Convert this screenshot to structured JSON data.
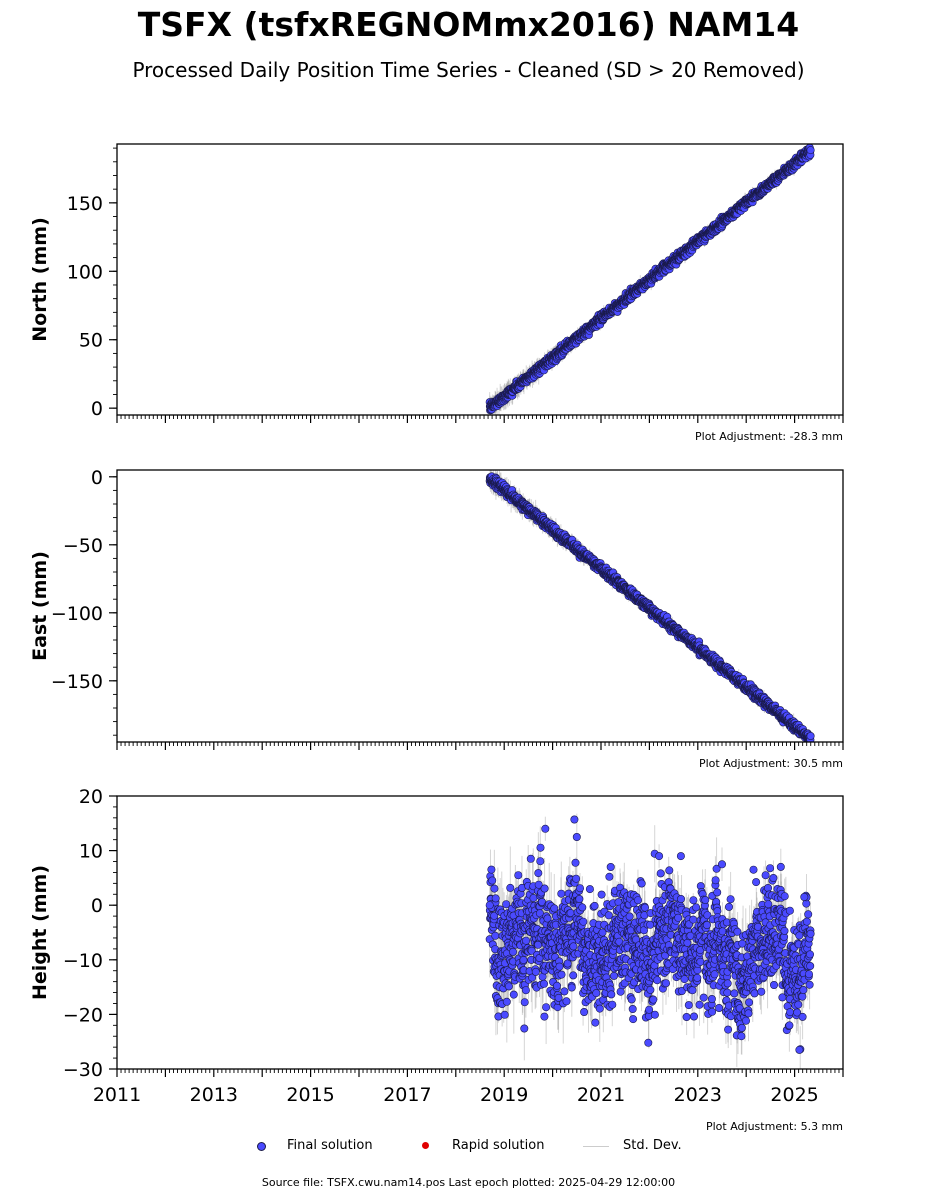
{
  "header": {
    "title": "TSFX (tsfxREGNOMmx2016) NAM14",
    "subtitle": "Processed Daily Position Time Series - Cleaned (SD > 20 Removed)"
  },
  "footer": {
    "source": "Source file: TSFX.cwu.nam14.pos  Last epoch plotted: 2025-04-29 12:00:00"
  },
  "legend": {
    "final": "Final solution",
    "rapid": "Rapid solution",
    "std": "Std. Dev."
  },
  "colors": {
    "final": "#4a4aff",
    "final_edge": "#1a1a4a",
    "rapid": "#e00000",
    "std": "#888888"
  },
  "chart_data": [
    {
      "type": "scatter",
      "ylabel": "North (mm)",
      "adjustment": "Plot Adjustment: -28.3 mm",
      "xlim": [
        2011.0,
        2026.0
      ],
      "ylim": [
        -5,
        193
      ],
      "yticks": [
        0,
        50,
        100,
        150
      ],
      "ytick_labels": [
        "0",
        "50",
        "100",
        "150"
      ],
      "x_range": [
        2018.7,
        2025.33
      ],
      "y_start": 0,
      "y_end": 188,
      "noise": 1.6,
      "std_early": 9,
      "std_late": 2.5
    },
    {
      "type": "scatter",
      "ylabel": "East (mm)",
      "adjustment": "Plot Adjustment: 30.5 mm",
      "xlim": [
        2011.0,
        2026.0
      ],
      "ylim": [
        -195,
        5
      ],
      "yticks": [
        0,
        -50,
        -100,
        -150
      ],
      "ytick_labels": [
        "0",
        "−50",
        "−100",
        "−150"
      ],
      "x_range": [
        2018.7,
        2025.33
      ],
      "y_start": -1,
      "y_end": -193,
      "noise": 1.6,
      "std_early": 9,
      "std_late": 2.5
    },
    {
      "type": "scatter",
      "ylabel": "Height (mm)",
      "adjustment": "Plot Adjustment: 5.3 mm",
      "xlim": [
        2011.0,
        2026.0
      ],
      "ylim": [
        -30,
        20
      ],
      "yticks": [
        20,
        10,
        0,
        -10,
        -20,
        -30
      ],
      "ytick_labels": [
        "20",
        "10",
        "0",
        "−10",
        "−20",
        "−30"
      ],
      "xticks": [
        2011,
        2013,
        2015,
        2017,
        2019,
        2021,
        2023,
        2025
      ],
      "xtick_labels": [
        "2011",
        "2013",
        "2015",
        "2017",
        "2019",
        "2021",
        "2023",
        "2025"
      ],
      "x_range": [
        2018.7,
        2025.33
      ],
      "y_start": -6,
      "y_end": -9,
      "noise": 4.6,
      "seasonal_amp": 3.2,
      "std_early": 7,
      "std_late": 5,
      "clip": [
        -27,
        16
      ],
      "highlights": [
        [
          2018.7,
          0
        ],
        [
          2019.55,
          8.5
        ],
        [
          2019.85,
          14
        ],
        [
          2020.45,
          15.7
        ],
        [
          2020.5,
          12.5
        ],
        [
          2021.2,
          7
        ],
        [
          2022.2,
          9
        ],
        [
          2022.65,
          9
        ],
        [
          2023.5,
          7.5
        ],
        [
          2024.15,
          6.5
        ],
        [
          2024.4,
          5.5
        ],
        [
          2025.2,
          1.5
        ],
        [
          2023.9,
          -24
        ],
        [
          2025.1,
          -26.5
        ]
      ]
    }
  ]
}
